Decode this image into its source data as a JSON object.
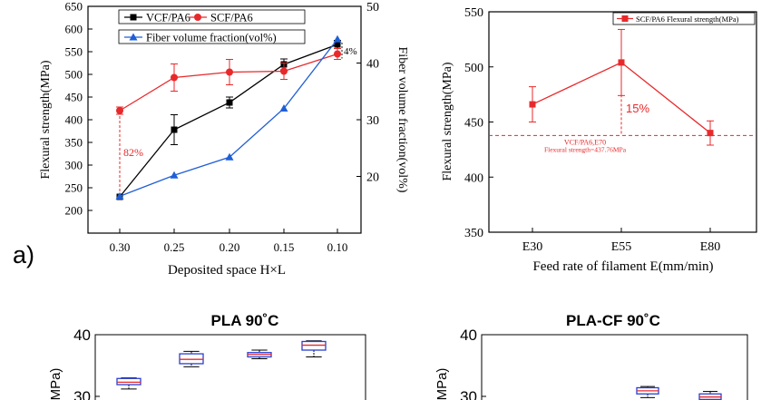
{
  "panel_label": "a)",
  "chart_data": [
    {
      "type": "line",
      "title": "",
      "xlabel": "Deposited space H×L",
      "ylabel": "Flexural strength(MPa)",
      "y2label": "Fiber volume fraction(vol%)",
      "categories": [
        "0.30",
        "0.25",
        "0.20",
        "0.15",
        "0.10"
      ],
      "ylim": [
        150,
        650
      ],
      "y2lim": [
        10,
        50
      ],
      "yticks": [
        "200",
        "250",
        "300",
        "350",
        "400",
        "450",
        "500",
        "550",
        "600",
        "650"
      ],
      "y2ticks": [
        "20",
        "30",
        "40",
        "50"
      ],
      "series": [
        {
          "name": "VCF/PA6",
          "axis": "left",
          "color": "#000000",
          "marker": "square",
          "values": [
            230,
            378,
            438,
            522,
            566
          ],
          "errors": [
            0,
            33,
            12,
            12,
            9
          ]
        },
        {
          "name": "SCF/PA6",
          "axis": "left",
          "color": "#e8292b",
          "marker": "circle",
          "values": [
            420,
            493,
            505,
            507,
            545
          ],
          "errors": [
            8,
            30,
            28,
            18,
            12
          ]
        },
        {
          "name": "Fiber volume fraction(vol%)",
          "axis": "right",
          "color": "#1f5fd6",
          "marker": "triangle",
          "values": [
            16.5,
            20.2,
            23.4,
            32.0,
            44.2
          ]
        }
      ],
      "annotations": [
        "82%",
        "4%"
      ],
      "grid": false,
      "legend": "top-left"
    },
    {
      "type": "line",
      "title": "",
      "xlabel": "Feed rate of filament E(mm/min)",
      "ylabel": "Flexural strength(MPa)",
      "categories": [
        "E30",
        "E55",
        "E80"
      ],
      "ylim": [
        350,
        550
      ],
      "yticks": [
        "350",
        "400",
        "450",
        "500",
        "550"
      ],
      "series": [
        {
          "name": "SCF/PA6 Flexural strength(MPa)",
          "color": "#e8292b",
          "marker": "square",
          "values": [
            466,
            504,
            440
          ],
          "errors": [
            16,
            30,
            11
          ]
        }
      ],
      "reference_line": {
        "value": 437.76,
        "label1": "VCF/PA6,E70",
        "label2": "Flexural strength=437.76MPa"
      },
      "annotations": [
        "15%"
      ],
      "grid": false,
      "legend": "top-right"
    },
    {
      "type": "box",
      "title": "PLA 90˚C",
      "ylabel": "(MPa)",
      "yticks_visible": [
        "40",
        "30"
      ],
      "boxes": [
        {
          "median": 32.3,
          "q1": 31.9,
          "q3": 32.9,
          "min": 31.2,
          "max": 33.0
        },
        {
          "median": 36.0,
          "q1": 35.3,
          "q3": 36.9,
          "min": 34.8,
          "max": 37.3
        },
        {
          "median": 36.8,
          "q1": 36.4,
          "q3": 37.1,
          "min": 36.1,
          "max": 37.5
        },
        {
          "median": 38.3,
          "q1": 37.5,
          "q3": 38.9,
          "min": 36.4,
          "max": 39.0
        }
      ]
    },
    {
      "type": "box",
      "title": "PLA-CF 90˚C",
      "ylabel": "(MPa)",
      "yticks_visible": [
        "40",
        "30"
      ],
      "boxes": [
        {
          "median": 30.9,
          "q1": 30.4,
          "q3": 31.4,
          "min": 29.8,
          "max": 31.6
        },
        {
          "median": 29.9,
          "q1": 29.5,
          "q3": 30.4,
          "min": 29.1,
          "max": 30.8
        }
      ]
    }
  ]
}
